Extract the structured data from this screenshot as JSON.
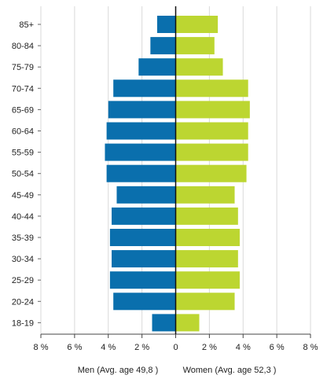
{
  "chart_data": {
    "type": "bar",
    "orientation": "horizontal",
    "subtype": "population-pyramid",
    "categories": [
      "85+",
      "80-84",
      "75-79",
      "70-74",
      "65-69",
      "60-64",
      "55-59",
      "50-54",
      "45-49",
      "40-44",
      "35-39",
      "30-34",
      "25-29",
      "20-24",
      "18-19"
    ],
    "series": [
      {
        "name": "Men (Avg. age 49,8 )",
        "color": "#0a6fad",
        "side": "left",
        "values": [
          1.1,
          1.5,
          2.2,
          3.7,
          4.0,
          4.1,
          4.2,
          4.1,
          3.5,
          3.8,
          3.9,
          3.8,
          3.9,
          3.7,
          1.4
        ]
      },
      {
        "name": "Women (Avg. age 52,3 )",
        "color": "#bcd631",
        "side": "right",
        "values": [
          2.5,
          2.3,
          2.8,
          4.3,
          4.4,
          4.3,
          4.3,
          4.2,
          3.5,
          3.7,
          3.8,
          3.7,
          3.8,
          3.5,
          1.4
        ]
      }
    ],
    "x_ticks": [
      "8 %",
      "6 %",
      "4 %",
      "2 %",
      "0",
      "2 %",
      "4 %",
      "6 %",
      "8 %"
    ],
    "xlim": [
      -8,
      8
    ],
    "grid": true,
    "legend_position": "bottom"
  }
}
